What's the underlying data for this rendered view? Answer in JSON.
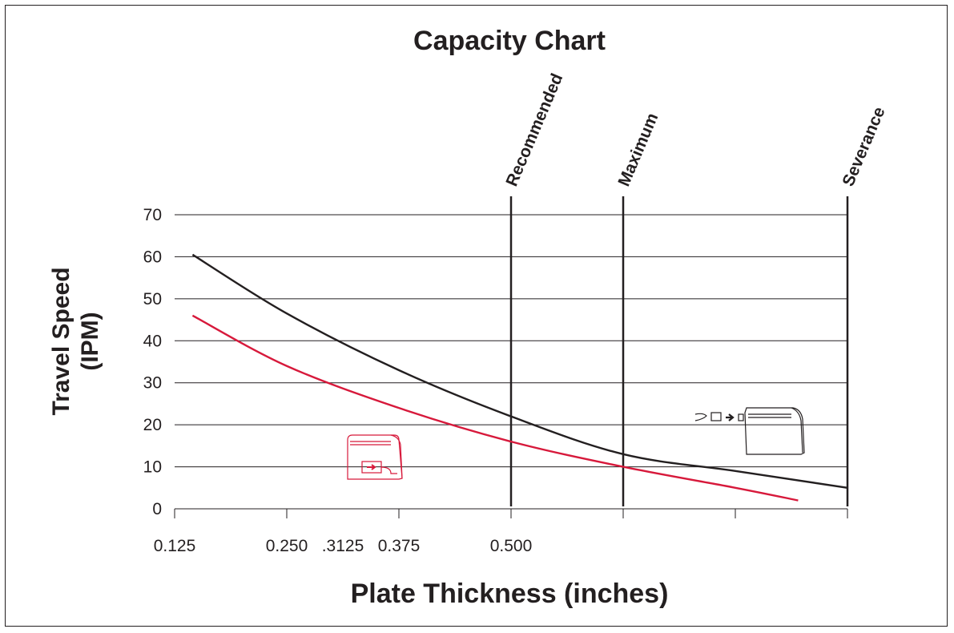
{
  "chart_data": {
    "type": "line",
    "title": "Capacity Chart",
    "xlabel": "Plate Thickness (inches)",
    "ylabel_line1": "Travel Speed",
    "ylabel_line2": "(IPM)",
    "ylim": [
      0,
      70
    ],
    "yticks": [
      "0",
      "10",
      "20",
      "30",
      "40",
      "50",
      "60",
      "70"
    ],
    "xlim": [
      0.125,
      0.875
    ],
    "xticks": [
      {
        "value": 0.125,
        "label": "0.125"
      },
      {
        "value": 0.25,
        "label": "0.250"
      },
      {
        "value": 0.3125,
        "label": ".3125"
      },
      {
        "value": 0.375,
        "label": "0.375"
      },
      {
        "value": 0.5,
        "label": "0.500"
      }
    ],
    "tick_marks": [
      0.125,
      0.25,
      0.375,
      0.5,
      0.625,
      0.75,
      0.875
    ],
    "grid": "horizontal",
    "reference_lines": [
      {
        "x": 0.5,
        "label": "Recommended"
      },
      {
        "x": 0.625,
        "label": "Maximum"
      },
      {
        "x": 0.875,
        "label": "Severance"
      }
    ],
    "series": [
      {
        "color": "#231f20",
        "x": [
          0.145,
          0.25,
          0.375,
          0.5,
          0.625,
          0.75,
          0.875
        ],
        "y": [
          60.5,
          46.5,
          33,
          22,
          13,
          9,
          5
        ]
      },
      {
        "color": "#d7193b",
        "x": [
          0.145,
          0.25,
          0.375,
          0.5,
          0.625,
          0.75,
          0.82
        ],
        "y": [
          46,
          34,
          24,
          16,
          10,
          5,
          2
        ]
      }
    ],
    "icons": [
      "machine-front-panel-icon",
      "machine-rear-plug-icon"
    ]
  }
}
